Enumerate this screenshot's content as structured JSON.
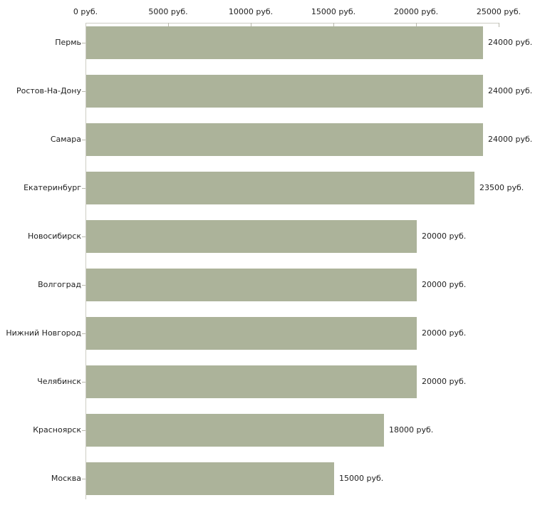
{
  "chart_data": {
    "type": "bar",
    "orientation": "horizontal",
    "categories": [
      "Пермь",
      "Ростов-На-Дону",
      "Самара",
      "Екатеринбург",
      "Новосибирск",
      "Волгоград",
      "Нижний Новгород",
      "Челябинск",
      "Красноярск",
      "Москва"
    ],
    "values": [
      24000,
      24000,
      24000,
      23500,
      20000,
      20000,
      20000,
      20000,
      18000,
      15000
    ],
    "value_labels": [
      "24000 руб.",
      "24000 руб.",
      "24000 руб.",
      "23500 руб.",
      "20000 руб.",
      "20000 руб.",
      "20000 руб.",
      "20000 руб.",
      "18000 руб.",
      "15000 руб."
    ],
    "unit": "руб.",
    "xlim": [
      0,
      25000
    ],
    "x_ticks": [
      0,
      5000,
      10000,
      15000,
      20000,
      25000
    ],
    "x_tick_labels": [
      "0 руб.",
      "5000 руб.",
      "10000 руб.",
      "15000 руб.",
      "20000 руб.",
      "25000 руб."
    ],
    "axis_position": "top",
    "grid": false,
    "legend": false,
    "bar_color": "#acb39a",
    "axis_color": "#cdcdc4",
    "tick_color": "#b9b9ad",
    "text_color": "#222222"
  }
}
